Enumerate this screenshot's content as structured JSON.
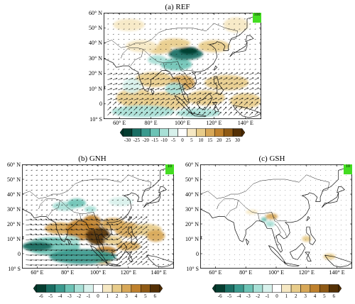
{
  "panels": [
    {
      "title": "(a) REF",
      "lat_labels": [
        "60° N",
        "50° N",
        "40° N",
        "30° N",
        "20° N",
        "10° N",
        "0",
        "10° S"
      ],
      "lon_labels": [
        "60° E",
        "80° E",
        "100° E",
        "120° E",
        "140° E"
      ],
      "ref_vector_label": "100",
      "colorbar_labels": [
        "-30",
        "-25",
        "-20",
        "-15",
        "-10",
        "-5",
        "0",
        "5",
        "10",
        "15",
        "20",
        "25",
        "30"
      ]
    },
    {
      "title": "(b) GNH",
      "lat_labels": [
        "60° N",
        "50° N",
        "40° N",
        "30° N",
        "20° N",
        "10° N",
        "0",
        "10° S"
      ],
      "lon_labels": [
        "60° E",
        "80° E",
        "100° E",
        "120° E",
        "140° E"
      ],
      "ref_vector_label": "10",
      "colorbar_labels": [
        "-6",
        "-5",
        "-4",
        "-3",
        "-2",
        "-1",
        "0",
        "1",
        "2",
        "3",
        "4",
        "5",
        "6"
      ]
    },
    {
      "title": "(c) GSH",
      "lat_labels": [
        "60° N",
        "50° N",
        "40° N",
        "30° N",
        "20° N",
        "10° N",
        "0",
        "10° S"
      ],
      "lon_labels": [
        "60° E",
        "80° E",
        "100° E",
        "120° E",
        "140° E"
      ],
      "ref_vector_label": "10",
      "colorbar_labels": [
        "-6",
        "-5",
        "-4",
        "-3",
        "-2",
        "-1",
        "0",
        "1",
        "2",
        "3",
        "4",
        "5",
        "6"
      ]
    }
  ],
  "colors": {
    "palette": [
      "#053d30",
      "#1a6e63",
      "#3a9a8e",
      "#6cc3b5",
      "#a8e0d6",
      "#d8f1ec",
      "#ffffff",
      "#f6e8c3",
      "#e8cc8a",
      "#d8a858",
      "#bf812d",
      "#8f5a15",
      "#543005"
    ],
    "ref_box": "#44dd22"
  },
  "map_data": {
    "extent": {
      "lon": [
        50,
        150
      ],
      "lat": [
        -10,
        60
      ]
    },
    "arrow_grid_deg": 5
  }
}
